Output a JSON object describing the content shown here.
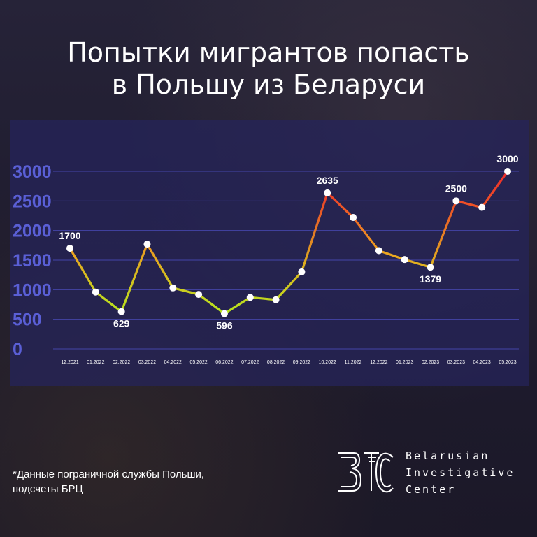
{
  "title": {
    "line1": "Попытки мигрантов попасть",
    "line2": "в Польшу из Беларуси"
  },
  "footnote": {
    "line1": "*Данные пограничной службы Польши,",
    "line2": "подсчеты БРЦ"
  },
  "logo": {
    "line1": "Belarusian",
    "line2": "Investigative",
    "line3": "Center"
  },
  "colors": {
    "low": "#b6e61e",
    "mid": "#f0a020",
    "high": "#ee2a2a",
    "axis_text": "#5a5fd6",
    "grid": "#4a4ab8"
  },
  "chart_data": {
    "type": "line",
    "title": "Попытки мигрантов попасть в Польшу из Беларуси",
    "x": [
      "12.2021",
      "01.2022",
      "02.2022",
      "03.2022",
      "04.2022",
      "05.2022",
      "06.2022",
      "07.2022",
      "08.2022",
      "09.2022",
      "10.2022",
      "11.2022",
      "12.2022",
      "01.2023",
      "02.2023",
      "03.2023",
      "04.2023",
      "05.2023"
    ],
    "values": [
      1700,
      960,
      629,
      1770,
      1030,
      920,
      596,
      870,
      830,
      1300,
      2635,
      2220,
      1660,
      1510,
      1379,
      2500,
      2390,
      3000
    ],
    "data_labels": {
      "0": "1700",
      "2": "629",
      "6": "596",
      "10": "2635",
      "14": "1379",
      "15": "2500",
      "17": "3000"
    },
    "yticks": [
      "3000",
      "2500",
      "2000",
      "1500",
      "1000",
      "500",
      "0"
    ],
    "ylim": [
      0,
      3000
    ],
    "grid": true,
    "legend": "none"
  }
}
